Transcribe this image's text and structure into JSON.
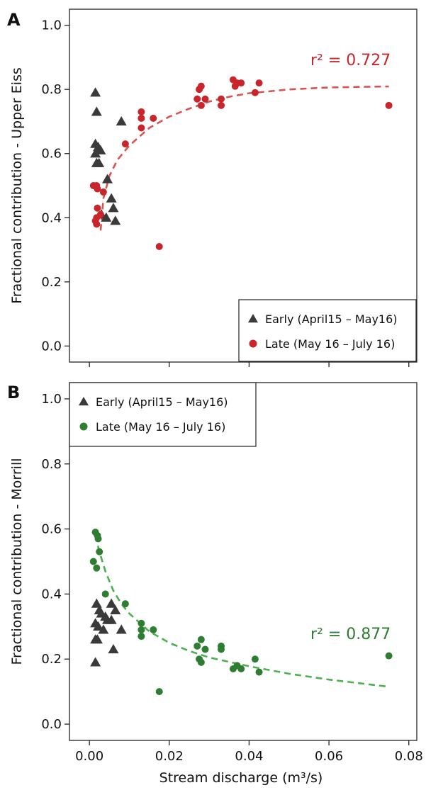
{
  "figure": {
    "xlabel": "Stream discharge (m³/s)"
  },
  "chart_data": [
    {
      "type": "scatter",
      "panel_label": "A",
      "ylabel": "Fractional contribution - Upper Eiss",
      "xlim": [
        -0.005,
        0.082
      ],
      "ylim": [
        -0.05,
        1.05
      ],
      "yticks": [
        0.0,
        0.2,
        0.4,
        0.6,
        0.8,
        1.0
      ],
      "ytick_labels": [
        "0.0",
        "0.2",
        "0.4",
        "0.6",
        "0.8",
        "1.0"
      ],
      "xticks": [
        0.0,
        0.02,
        0.04,
        0.06,
        0.08
      ],
      "legend_position": "bottom-right",
      "r2_label": "r² = 0.727",
      "colors": {
        "early": "#3a3a3a",
        "late": "#c8262c",
        "fit": "#d9534f"
      },
      "series": [
        {
          "key": "early",
          "name": "Early (April15 – May16)",
          "marker": "triangle",
          "points": [
            [
              0.0015,
              0.79
            ],
            [
              0.0018,
              0.73
            ],
            [
              0.0015,
              0.63
            ],
            [
              0.0022,
              0.62
            ],
            [
              0.0028,
              0.61
            ],
            [
              0.0015,
              0.6
            ],
            [
              0.0018,
              0.57
            ],
            [
              0.0024,
              0.57
            ],
            [
              0.0045,
              0.52
            ],
            [
              0.0055,
              0.46
            ],
            [
              0.006,
              0.43
            ],
            [
              0.0065,
              0.39
            ],
            [
              0.003,
              0.41
            ],
            [
              0.0042,
              0.4
            ],
            [
              0.008,
              0.7
            ]
          ]
        },
        {
          "key": "late",
          "name": "Late (May 16 – July 16)",
          "marker": "circle",
          "points": [
            [
              0.001,
              0.5
            ],
            [
              0.0018,
              0.5
            ],
            [
              0.002,
              0.49
            ],
            [
              0.0035,
              0.48
            ],
            [
              0.002,
              0.43
            ],
            [
              0.0028,
              0.41
            ],
            [
              0.0018,
              0.4
            ],
            [
              0.0015,
              0.39
            ],
            [
              0.0018,
              0.38
            ],
            [
              0.009,
              0.63
            ],
            [
              0.013,
              0.73
            ],
            [
              0.013,
              0.71
            ],
            [
              0.013,
              0.68
            ],
            [
              0.016,
              0.71
            ],
            [
              0.0175,
              0.31
            ],
            [
              0.027,
              0.77
            ],
            [
              0.0275,
              0.8
            ],
            [
              0.028,
              0.81
            ],
            [
              0.029,
              0.77
            ],
            [
              0.028,
              0.75
            ],
            [
              0.033,
              0.77
            ],
            [
              0.033,
              0.75
            ],
            [
              0.036,
              0.83
            ],
            [
              0.0365,
              0.81
            ],
            [
              0.037,
              0.82
            ],
            [
              0.038,
              0.82
            ],
            [
              0.0415,
              0.79
            ],
            [
              0.0425,
              0.82
            ],
            [
              0.075,
              0.75
            ]
          ]
        }
      ],
      "fit": {
        "series": "late",
        "points": [
          [
            0.0028,
            0.36
          ],
          [
            0.0035,
            0.46
          ],
          [
            0.005,
            0.53
          ],
          [
            0.007,
            0.58
          ],
          [
            0.01,
            0.625
          ],
          [
            0.015,
            0.68
          ],
          [
            0.02,
            0.715
          ],
          [
            0.025,
            0.74
          ],
          [
            0.03,
            0.762
          ],
          [
            0.035,
            0.777
          ],
          [
            0.04,
            0.788
          ],
          [
            0.05,
            0.8
          ],
          [
            0.06,
            0.806
          ],
          [
            0.068,
            0.808
          ],
          [
            0.075,
            0.809
          ]
        ]
      }
    },
    {
      "type": "scatter",
      "panel_label": "B",
      "ylabel": "Fractional contribution - Morrill",
      "xlim": [
        -0.005,
        0.082
      ],
      "ylim": [
        -0.05,
        1.05
      ],
      "yticks": [
        0.0,
        0.2,
        0.4,
        0.6,
        0.8,
        1.0
      ],
      "ytick_labels": [
        "0.0",
        "0.2",
        "0.4",
        "0.6",
        "0.8",
        "1.0"
      ],
      "xticks": [
        0.0,
        0.02,
        0.04,
        0.06,
        0.08
      ],
      "xtick_labels": [
        "0.00",
        "0.02",
        "0.04",
        "0.06",
        "0.08"
      ],
      "legend_position": "top-left",
      "r2_label": "r² = 0.877",
      "colors": {
        "early": "#3a3a3a",
        "late": "#2e7d32",
        "fit": "#4caf50"
      },
      "series": [
        {
          "key": "early",
          "name": "Early (April15 – May16)",
          "marker": "triangle",
          "points": [
            [
              0.0018,
              0.37
            ],
            [
              0.0025,
              0.35
            ],
            [
              0.003,
              0.34
            ],
            [
              0.004,
              0.33
            ],
            [
              0.0055,
              0.37
            ],
            [
              0.0065,
              0.35
            ],
            [
              0.0045,
              0.32
            ],
            [
              0.0015,
              0.31
            ],
            [
              0.0022,
              0.3
            ],
            [
              0.0035,
              0.29
            ],
            [
              0.0055,
              0.32
            ],
            [
              0.008,
              0.29
            ],
            [
              0.0015,
              0.26
            ],
            [
              0.002,
              0.26
            ],
            [
              0.006,
              0.23
            ],
            [
              0.0015,
              0.19
            ]
          ]
        },
        {
          "key": "late",
          "name": "Late (May 16 – July 16)",
          "marker": "circle",
          "points": [
            [
              0.0015,
              0.59
            ],
            [
              0.002,
              0.58
            ],
            [
              0.0022,
              0.57
            ],
            [
              0.0025,
              0.53
            ],
            [
              0.001,
              0.5
            ],
            [
              0.0018,
              0.48
            ],
            [
              0.004,
              0.4
            ],
            [
              0.009,
              0.37
            ],
            [
              0.013,
              0.31
            ],
            [
              0.013,
              0.29
            ],
            [
              0.013,
              0.27
            ],
            [
              0.016,
              0.29
            ],
            [
              0.0175,
              0.1
            ],
            [
              0.027,
              0.24
            ],
            [
              0.0275,
              0.2
            ],
            [
              0.028,
              0.19
            ],
            [
              0.028,
              0.26
            ],
            [
              0.029,
              0.23
            ],
            [
              0.033,
              0.24
            ],
            [
              0.033,
              0.23
            ],
            [
              0.036,
              0.17
            ],
            [
              0.037,
              0.18
            ],
            [
              0.038,
              0.17
            ],
            [
              0.0415,
              0.2
            ],
            [
              0.0425,
              0.16
            ],
            [
              0.075,
              0.21
            ]
          ]
        }
      ],
      "fit": {
        "series": "late",
        "points": [
          [
            0.0015,
            0.58
          ],
          [
            0.0025,
            0.53
          ],
          [
            0.004,
            0.47
          ],
          [
            0.006,
            0.41
          ],
          [
            0.008,
            0.37
          ],
          [
            0.01,
            0.34
          ],
          [
            0.015,
            0.285
          ],
          [
            0.02,
            0.25
          ],
          [
            0.025,
            0.225
          ],
          [
            0.03,
            0.205
          ],
          [
            0.04,
            0.178
          ],
          [
            0.05,
            0.155
          ],
          [
            0.06,
            0.137
          ],
          [
            0.075,
            0.115
          ]
        ]
      }
    }
  ]
}
